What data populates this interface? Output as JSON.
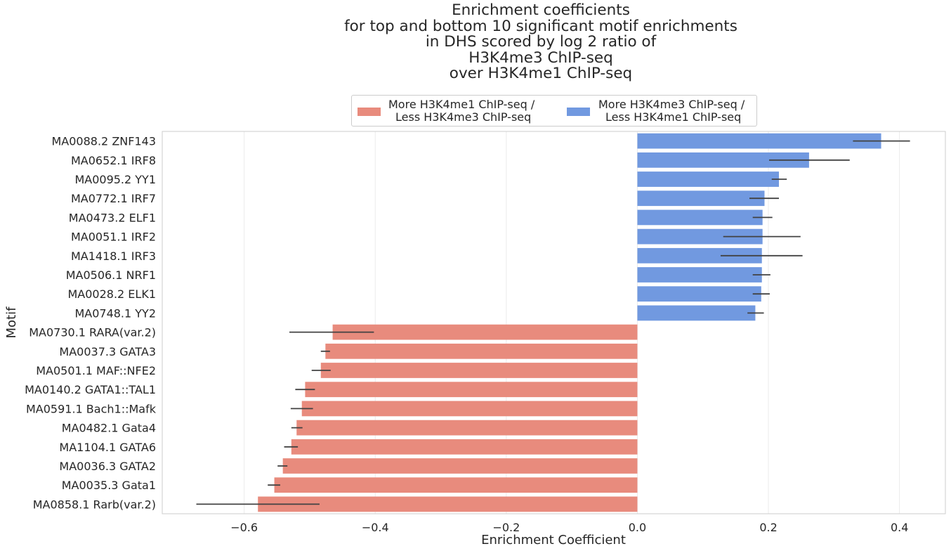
{
  "chart_data": {
    "type": "bar",
    "orientation": "horizontal",
    "title": "Enrichment coefficients\nfor top and bottom 10 significant motif enrichments\nin DHS scored by log 2 ratio of\nH3K4me3 ChIP-seq\nover H3K4me1 ChIP-seq",
    "xlabel": "Enrichment Coefficient",
    "ylabel": "Motif",
    "xlim": [
      -0.725,
      0.47
    ],
    "x_ticks": [
      -0.6,
      -0.4,
      -0.2,
      0.0,
      0.2,
      0.4
    ],
    "x_tick_labels": [
      "−0.6",
      "−0.4",
      "−0.2",
      "0.0",
      "0.2",
      "0.4"
    ],
    "grid": "vertical",
    "legend_position": "top-center",
    "series": [
      {
        "name": "More H3K4me1 ChIP-seq /\n Less H3K4me3 ChIP-seq",
        "color": "#fa8072"
      },
      {
        "name": "More H3K4me3 ChIP-seq /\n Less H3K4me1 ChIP-seq",
        "color": "#6495ed"
      }
    ],
    "bars": [
      {
        "label": "MA0088.2 ZNF143",
        "value": 0.372,
        "err_low": 0.329,
        "err_high": 0.416,
        "series": 1
      },
      {
        "label": "MA0652.1 IRF8",
        "value": 0.262,
        "err_low": 0.201,
        "err_high": 0.324,
        "series": 1
      },
      {
        "label": "MA0095.2 YY1",
        "value": 0.216,
        "err_low": 0.205,
        "err_high": 0.228,
        "series": 1
      },
      {
        "label": "MA0772.1 IRF7",
        "value": 0.194,
        "err_low": 0.171,
        "err_high": 0.216,
        "series": 1
      },
      {
        "label": "MA0473.2 ELF1",
        "value": 0.191,
        "err_low": 0.176,
        "err_high": 0.206,
        "series": 1
      },
      {
        "label": "MA0051.1 IRF2",
        "value": 0.191,
        "err_low": 0.131,
        "err_high": 0.249,
        "series": 1
      },
      {
        "label": "MA1418.1 IRF3",
        "value": 0.19,
        "err_low": 0.127,
        "err_high": 0.252,
        "series": 1
      },
      {
        "label": "MA0506.1 NRF1",
        "value": 0.19,
        "err_low": 0.176,
        "err_high": 0.203,
        "series": 1
      },
      {
        "label": "MA0028.2 ELK1",
        "value": 0.189,
        "err_low": 0.176,
        "err_high": 0.202,
        "series": 1
      },
      {
        "label": "MA0748.1 YY2",
        "value": 0.18,
        "err_low": 0.168,
        "err_high": 0.193,
        "series": 1
      },
      {
        "label": "MA0730.1 RARA(var.2)",
        "value": -0.465,
        "err_low": -0.531,
        "err_high": -0.402,
        "series": 0
      },
      {
        "label": "MA0037.3 GATA3",
        "value": -0.476,
        "err_low": -0.483,
        "err_high": -0.469,
        "series": 0
      },
      {
        "label": "MA0501.1 MAF::NFE2",
        "value": -0.483,
        "err_low": -0.497,
        "err_high": -0.468,
        "series": 0
      },
      {
        "label": "MA0140.2 GATA1::TAL1",
        "value": -0.507,
        "err_low": -0.522,
        "err_high": -0.492,
        "series": 0
      },
      {
        "label": "MA0591.1 Bach1::Mafk",
        "value": -0.512,
        "err_low": -0.529,
        "err_high": -0.495,
        "series": 0
      },
      {
        "label": "MA0482.1 Gata4",
        "value": -0.52,
        "err_low": -0.528,
        "err_high": -0.511,
        "series": 0
      },
      {
        "label": "MA1104.1 GATA6",
        "value": -0.528,
        "err_low": -0.539,
        "err_high": -0.518,
        "series": 0
      },
      {
        "label": "MA0036.3 GATA2",
        "value": -0.541,
        "err_low": -0.549,
        "err_high": -0.534,
        "series": 0
      },
      {
        "label": "MA0035.3 Gata1",
        "value": -0.554,
        "err_low": -0.564,
        "err_high": -0.545,
        "series": 0
      },
      {
        "label": "MA0858.1 Rarb(var.2)",
        "value": -0.579,
        "err_low": -0.673,
        "err_high": -0.485,
        "series": 0
      }
    ]
  }
}
